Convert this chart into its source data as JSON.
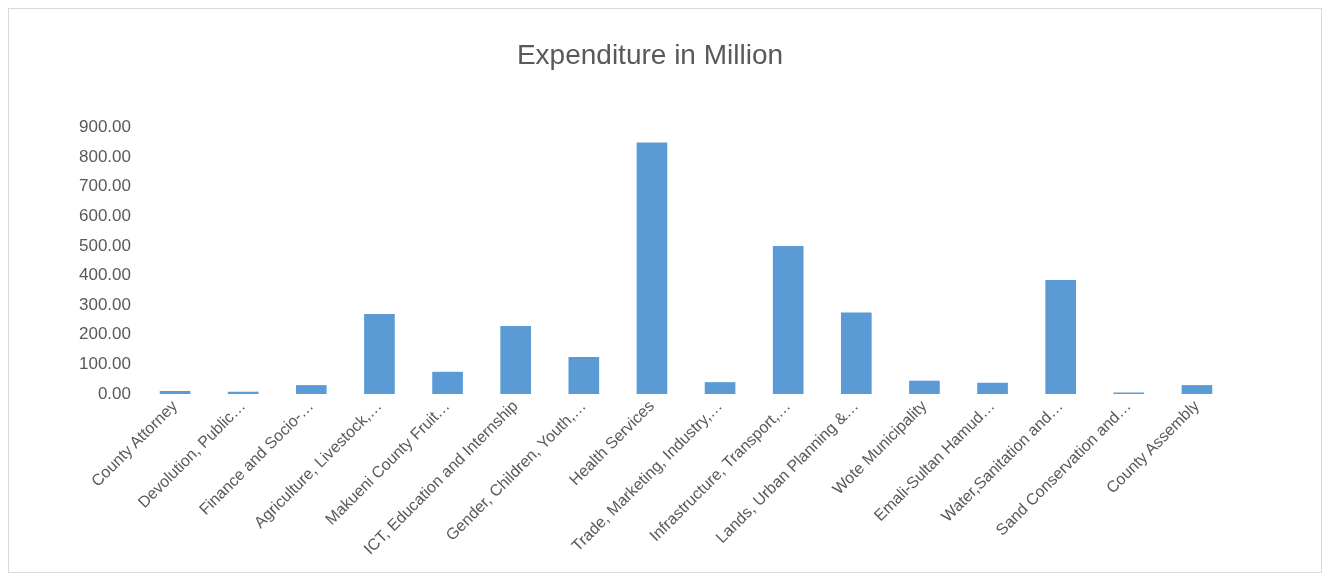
{
  "chart_data": {
    "type": "bar",
    "title": "Expenditure in Million",
    "categories": [
      "County Attorney",
      "Devolution, Public…",
      "Finance and Socio-…",
      "Agriculture, Livestock,…",
      "Makueni County Fruit…",
      "ICT, Education and Internship",
      "Gender, Children, Youth,…",
      "Health Services",
      "Trade, Marketing, Industry,…",
      "Infrastructure, Transport,…",
      "Lands, Urban Planning &…",
      "Wote Municipality",
      "Emali-Sultan Hamud…",
      "Water,Sanitation and…",
      "Sand Conservation and…",
      "County Assembly"
    ],
    "values": [
      10,
      8,
      30,
      270,
      75,
      230,
      125,
      850,
      40,
      500,
      275,
      45,
      38,
      385,
      5,
      30
    ],
    "color": "#5b9bd5",
    "ylim": [
      0,
      900
    ],
    "yticks": [
      {
        "value": 0,
        "label": "0.00"
      },
      {
        "value": 100,
        "label": "100.00"
      },
      {
        "value": 200,
        "label": "200.00"
      },
      {
        "value": 300,
        "label": "300.00"
      },
      {
        "value": 400,
        "label": "400.00"
      },
      {
        "value": 500,
        "label": "500.00"
      },
      {
        "value": 600,
        "label": "600.00"
      },
      {
        "value": 700,
        "label": "700.00"
      },
      {
        "value": 800,
        "label": "800.00"
      },
      {
        "value": 900,
        "label": "900.00"
      }
    ],
    "grid": false,
    "legend": false
  }
}
